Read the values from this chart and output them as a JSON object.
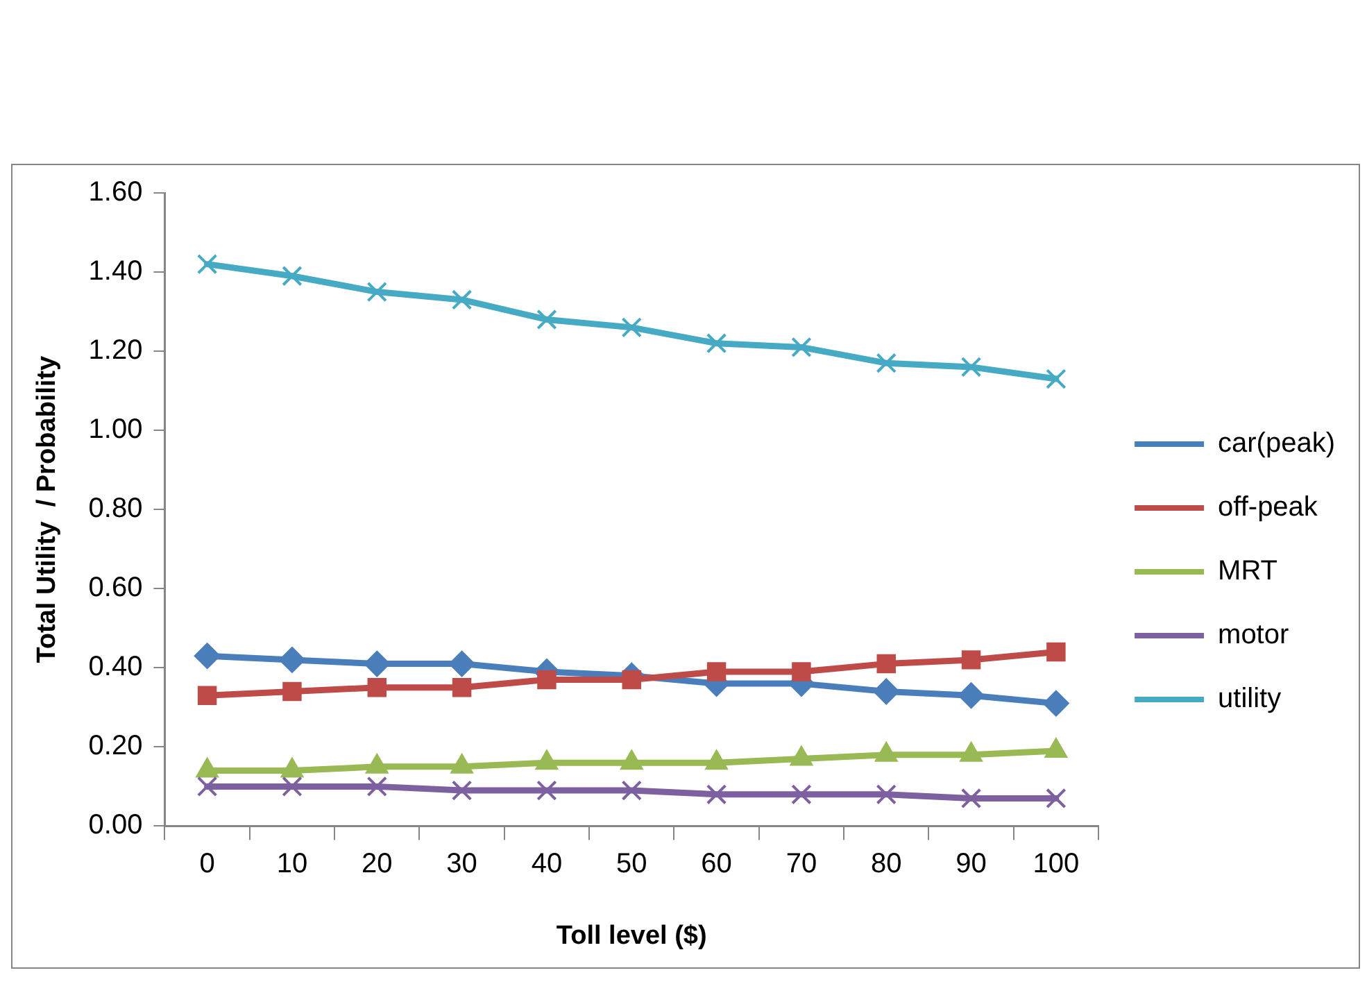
{
  "chart_data": {
    "type": "line",
    "xlabel": "Toll level ($)",
    "ylabel": "Total Utility  / Probability",
    "categories": [
      "0",
      "10",
      "20",
      "30",
      "40",
      "50",
      "60",
      "70",
      "80",
      "90",
      "100"
    ],
    "series": [
      {
        "name": "car(peak)",
        "color": "#4a7ebb",
        "marker": "diamond",
        "values": [
          0.43,
          0.42,
          0.41,
          0.41,
          0.39,
          0.38,
          0.36,
          0.36,
          0.34,
          0.33,
          0.31
        ]
      },
      {
        "name": "off-peak",
        "color": "#be4b48",
        "marker": "square",
        "values": [
          0.33,
          0.34,
          0.35,
          0.35,
          0.37,
          0.37,
          0.39,
          0.39,
          0.41,
          0.42,
          0.44
        ]
      },
      {
        "name": "MRT",
        "color": "#98b954",
        "marker": "triangle",
        "values": [
          0.14,
          0.14,
          0.15,
          0.15,
          0.16,
          0.16,
          0.16,
          0.17,
          0.18,
          0.18,
          0.19
        ]
      },
      {
        "name": "motor",
        "color": "#7d60a0",
        "marker": "cross",
        "values": [
          0.1,
          0.1,
          0.1,
          0.09,
          0.09,
          0.09,
          0.08,
          0.08,
          0.08,
          0.07,
          0.07
        ]
      },
      {
        "name": "utility",
        "color": "#46aac5",
        "marker": "cross",
        "values": [
          1.42,
          1.39,
          1.35,
          1.33,
          1.28,
          1.26,
          1.22,
          1.21,
          1.17,
          1.16,
          1.13
        ]
      }
    ],
    "ylim": [
      0,
      1.6
    ],
    "yticks": [
      {
        "value": 0,
        "label": "0.00"
      },
      {
        "value": 0.2,
        "label": "0.20"
      },
      {
        "value": 0.4,
        "label": "0.40"
      },
      {
        "value": 0.6,
        "label": "0.60"
      },
      {
        "value": 0.8,
        "label": "0.80"
      },
      {
        "value": 1,
        "label": "1.00"
      },
      {
        "value": 1.2,
        "label": "1.20"
      },
      {
        "value": 1.4,
        "label": "1.40"
      },
      {
        "value": 1.6,
        "label": "1.60"
      }
    ],
    "grid": false,
    "legend": "right",
    "line_style": "solid"
  }
}
